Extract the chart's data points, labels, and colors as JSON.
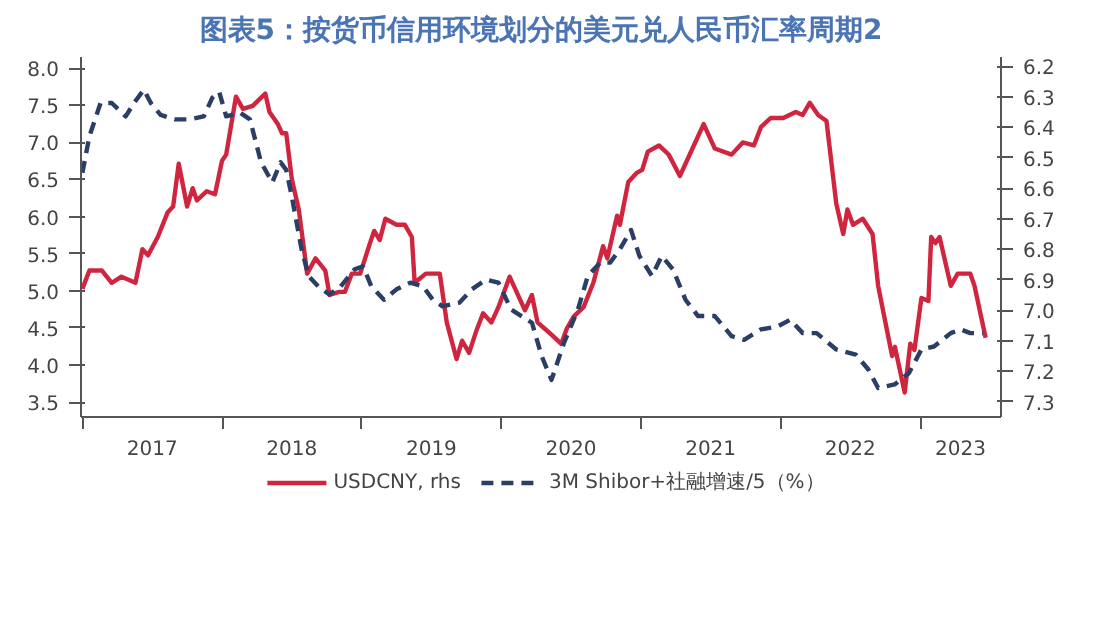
{
  "chart_data": {
    "type": "line",
    "title": "图表5：按货币信用环境划分的美元兑人民币汇率周期2",
    "xlim": [
      2016.99,
      2023.58
    ],
    "xticks": [
      {
        "value": 2017,
        "label": null
      },
      {
        "value": 2017.5,
        "label": "2017"
      },
      {
        "value": 2018,
        "label": null
      },
      {
        "value": 2018.5,
        "label": "2018"
      },
      {
        "value": 2019,
        "label": null
      },
      {
        "value": 2019.5,
        "label": "2019"
      },
      {
        "value": 2020,
        "label": null
      },
      {
        "value": 2020.5,
        "label": "2020"
      },
      {
        "value": 2021,
        "label": null
      },
      {
        "value": 2021.5,
        "label": "2021"
      },
      {
        "value": 2022,
        "label": null
      },
      {
        "value": 2022.5,
        "label": "2022"
      },
      {
        "value": 2023,
        "label": null
      },
      {
        "value": 2023.29,
        "label": "2023"
      }
    ],
    "ylim": [
      3.3,
      8.15
    ],
    "yticks": [
      {
        "value": 3.5,
        "label": "3.5"
      },
      {
        "value": 4.0,
        "label": "4.0"
      },
      {
        "value": 4.5,
        "label": "4.5"
      },
      {
        "value": 5.0,
        "label": "5.0"
      },
      {
        "value": 5.5,
        "label": "5.5"
      },
      {
        "value": 6.0,
        "label": "6.0"
      },
      {
        "value": 6.5,
        "label": "6.5"
      },
      {
        "value": 7.0,
        "label": "7.0"
      },
      {
        "value": 7.5,
        "label": "7.5"
      },
      {
        "value": 8.0,
        "label": "8.0"
      }
    ],
    "y2lim": [
      7.35,
      6.17
    ],
    "y2ticks": [
      6.2,
      6.3,
      6.4,
      6.5,
      6.6,
      6.7,
      6.8,
      6.9,
      {
        "value": 7.0,
        "label": "7.0"
      },
      7.1,
      7.2,
      7.3
    ],
    "grid": false,
    "legend": "bottom",
    "series": [
      {
        "name": "USDCNY, rhs",
        "color": "#d0253f",
        "axis": "y2",
        "line_style": "solid",
        "x": [
          2017.0,
          2017.05,
          2017.14,
          2017.21,
          2017.28,
          2017.38,
          2017.43,
          2017.47,
          2017.54,
          2017.61,
          2017.65,
          2017.69,
          2017.75,
          2017.79,
          2017.82,
          2017.89,
          2017.95,
          2018.0,
          2018.03,
          2018.1,
          2018.15,
          2018.22,
          2018.31,
          2018.34,
          2018.4,
          2018.43,
          2018.46,
          2018.5,
          2018.55,
          2018.61,
          2018.67,
          2018.74,
          2018.77,
          2018.84,
          2018.88,
          2018.93,
          2018.99,
          2019.06,
          2019.09,
          2019.13,
          2019.17,
          2019.25,
          2019.31,
          2019.36,
          2019.38,
          2019.46,
          2019.56,
          2019.61,
          2019.68,
          2019.72,
          2019.77,
          2019.82,
          2019.87,
          2019.93,
          2019.98,
          2020.06,
          2020.1,
          2020.17,
          2020.22,
          2020.26,
          2020.31,
          2020.36,
          2020.43,
          2020.47,
          2020.52,
          2020.59,
          2020.66,
          2020.73,
          2020.76,
          2020.83,
          2020.85,
          2020.91,
          2020.97,
          2021.01,
          2021.05,
          2021.13,
          2021.2,
          2021.28,
          2021.37,
          2021.45,
          2021.53,
          2021.65,
          2021.73,
          2021.81,
          2021.86,
          2021.93,
          2022.02,
          2022.11,
          2022.16,
          2022.21,
          2022.27,
          2022.33,
          2022.4,
          2022.45,
          2022.48,
          2022.52,
          2022.59,
          2022.66,
          2022.7,
          2022.8,
          2022.82,
          2022.89,
          2022.93,
          2022.96,
          2023.01,
          2023.06,
          2023.08,
          2023.11,
          2023.14,
          2023.22,
          2023.27,
          2023.36,
          2023.39,
          2023.47
        ],
        "values": [
          6.93,
          6.87,
          6.87,
          6.91,
          6.89,
          6.91,
          6.8,
          6.82,
          6.76,
          6.68,
          6.66,
          6.52,
          6.66,
          6.6,
          6.64,
          6.61,
          6.62,
          6.51,
          6.49,
          6.3,
          6.34,
          6.33,
          6.29,
          6.35,
          6.39,
          6.42,
          6.42,
          6.57,
          6.67,
          6.88,
          6.83,
          6.87,
          6.95,
          6.94,
          6.94,
          6.88,
          6.88,
          6.78,
          6.74,
          6.77,
          6.7,
          6.72,
          6.72,
          6.76,
          6.91,
          6.88,
          6.88,
          7.04,
          7.16,
          7.1,
          7.14,
          7.07,
          7.01,
          7.04,
          6.99,
          6.89,
          6.93,
          7.0,
          6.95,
          7.04,
          7.06,
          7.08,
          7.11,
          7.06,
          7.02,
          6.99,
          6.91,
          6.79,
          6.83,
          6.69,
          6.72,
          6.58,
          6.55,
          6.54,
          6.48,
          6.46,
          6.49,
          6.56,
          6.47,
          6.39,
          6.47,
          6.49,
          6.45,
          6.46,
          6.4,
          6.37,
          6.37,
          6.35,
          6.36,
          6.32,
          6.36,
          6.38,
          6.65,
          6.75,
          6.67,
          6.72,
          6.7,
          6.75,
          6.92,
          7.15,
          7.12,
          7.27,
          7.11,
          7.13,
          6.96,
          6.97,
          6.76,
          6.78,
          6.76,
          6.92,
          6.88,
          6.88,
          6.92,
          7.09
        ]
      },
      {
        "name": "3M Shibor+社融增速/5（%）",
        "color": "#2b3f66",
        "line_style": "dashed",
        "x": [
          2017.0,
          2017.05,
          2017.13,
          2017.21,
          2017.31,
          2017.37,
          2017.44,
          2017.49,
          2017.56,
          2017.66,
          2017.77,
          2017.87,
          2017.93,
          2017.98,
          2018.03,
          2018.13,
          2018.2,
          2018.28,
          2018.36,
          2018.42,
          2018.46,
          2018.5,
          2018.57,
          2018.62,
          2018.69,
          2018.77,
          2018.85,
          2018.95,
          2019.01,
          2019.07,
          2019.16,
          2019.25,
          2019.35,
          2019.44,
          2019.51,
          2019.58,
          2019.7,
          2019.79,
          2019.89,
          2019.98,
          2020.07,
          2020.22,
          2020.29,
          2020.36,
          2020.45,
          2020.55,
          2020.62,
          2020.71,
          2020.78,
          2020.85,
          2020.93,
          2020.99,
          2021.08,
          2021.15,
          2021.23,
          2021.32,
          2021.41,
          2021.53,
          2021.65,
          2021.74,
          2021.86,
          2021.98,
          2022.07,
          2022.16,
          2022.26,
          2022.4,
          2022.54,
          2022.63,
          2022.7,
          2022.82,
          2022.92,
          2023.01,
          2023.1,
          2023.22,
          2023.29,
          2023.36,
          2023.45
        ],
        "values": [
          6.59,
          7.08,
          7.53,
          7.53,
          7.35,
          7.53,
          7.71,
          7.53,
          7.37,
          7.31,
          7.31,
          7.35,
          7.6,
          7.68,
          7.35,
          7.4,
          7.31,
          6.73,
          6.46,
          6.73,
          6.63,
          6.27,
          5.56,
          5.2,
          5.06,
          4.95,
          5.06,
          5.29,
          5.33,
          5.06,
          4.88,
          5.02,
          5.11,
          5.06,
          4.88,
          4.79,
          4.84,
          5.02,
          5.15,
          5.11,
          4.75,
          4.57,
          4.12,
          3.8,
          4.3,
          4.75,
          5.2,
          5.38,
          5.38,
          5.56,
          5.82,
          5.47,
          5.2,
          5.47,
          5.29,
          4.88,
          4.66,
          4.66,
          4.39,
          4.34,
          4.48,
          4.52,
          4.61,
          4.43,
          4.43,
          4.21,
          4.14,
          3.94,
          3.69,
          3.74,
          3.89,
          4.21,
          4.25,
          4.43,
          4.48,
          4.43,
          4.43
        ]
      }
    ]
  }
}
